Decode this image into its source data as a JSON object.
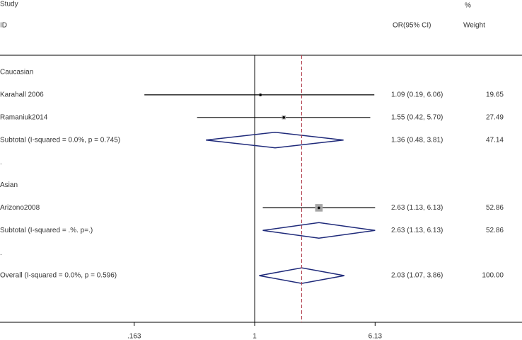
{
  "chart_data": {
    "type": "forest",
    "headers": {
      "study": "Study",
      "id": "ID",
      "effect": "OR(95% CI)",
      "weight_pct": "%",
      "weight": "Weight"
    },
    "xlog": true,
    "xlim": [
      0.0216,
      56
    ],
    "xticks": [
      {
        "value": 0.163,
        "label": ".163"
      },
      1,
      6.13
    ],
    "null_line": 1,
    "colors": {
      "line": "#000000",
      "square": "#a6a6a6",
      "diamond": "#1f2a7a",
      "overall_line": "#b03a48"
    },
    "rows": [
      {
        "kind": "group",
        "label": "Caucasian"
      },
      {
        "kind": "study",
        "label": "Karahall 2006",
        "or": 1.09,
        "lo": 0.19,
        "hi": 6.06,
        "ci_label": "1.09 (0.19, 6.06)",
        "weight": 19.65
      },
      {
        "kind": "study",
        "label": "Ramaniuk2014",
        "or": 1.55,
        "lo": 0.42,
        "hi": 5.7,
        "ci_label": "1.55 (0.42, 5.70)",
        "weight": 27.49
      },
      {
        "kind": "subtotal",
        "label": "Subtotal (I-squared = 0.0%, p = 0.745)",
        "or": 1.36,
        "lo": 0.48,
        "hi": 3.81,
        "ci_label": "1.36 (0.48, 3.81)",
        "weight": 47.14
      },
      {
        "kind": "blank",
        "label": "."
      },
      {
        "kind": "group",
        "label": "Asian"
      },
      {
        "kind": "study",
        "label": "Arizono2008",
        "or": 2.63,
        "lo": 1.13,
        "hi": 6.13,
        "ci_label": "2.63 (1.13, 6.13)",
        "weight": 52.86
      },
      {
        "kind": "subtotal",
        "label": "Subtotal (I-squared = .%. p=.)",
        "or": 2.63,
        "lo": 1.13,
        "hi": 6.13,
        "ci_label": "2.63 (1.13, 6.13)",
        "weight": 52.86
      },
      {
        "kind": "blank",
        "label": "."
      },
      {
        "kind": "overall",
        "label": "Overall (I-squared = 0.0%, p = 0.596)",
        "or": 2.03,
        "lo": 1.07,
        "hi": 3.86,
        "ci_label": "2.03 (1.07, 3.86)",
        "weight": 100,
        "weight_label": "100.00"
      }
    ]
  }
}
